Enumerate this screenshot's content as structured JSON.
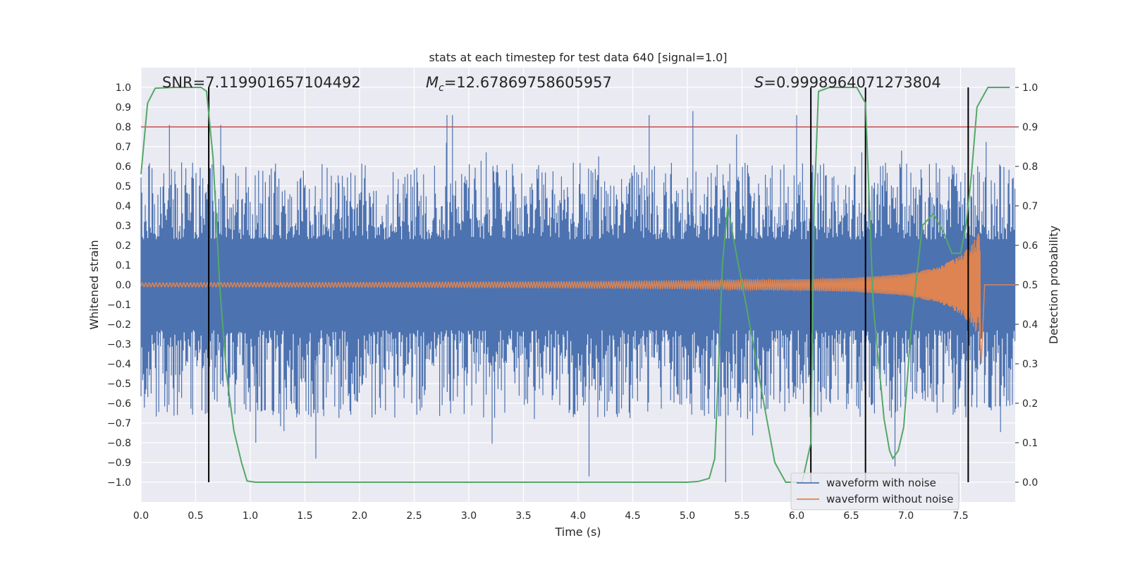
{
  "chart_data": {
    "type": "line",
    "title": "stats at each timestep for test data 640 [signal=1.0]",
    "xlabel": "Time (s)",
    "ylabel": "Whitened strain",
    "y2label": "Detection probability",
    "xlim": [
      0.0,
      8.0
    ],
    "ylim": [
      -1.1,
      1.1
    ],
    "y2lim": [
      -0.05,
      1.05
    ],
    "x_ticks": [
      0.0,
      0.5,
      1.0,
      1.5,
      2.0,
      2.5,
      3.0,
      3.5,
      4.0,
      4.5,
      5.0,
      5.5,
      6.0,
      6.5,
      7.0,
      7.5
    ],
    "x_tick_labels": [
      "0.0",
      "0.5",
      "1.0",
      "1.5",
      "2.0",
      "2.5",
      "3.0",
      "3.5",
      "4.0",
      "4.5",
      "5.0",
      "5.5",
      "6.0",
      "6.5",
      "7.0",
      "7.5"
    ],
    "y_ticks": [
      1.0,
      0.9,
      0.8,
      0.7,
      0.6,
      0.5,
      0.4,
      0.3,
      0.2,
      0.1,
      0.0,
      -0.1,
      -0.2,
      -0.3,
      -0.4,
      -0.5,
      -0.6,
      -0.7,
      -0.8,
      -0.9,
      -1.0
    ],
    "y_tick_labels": [
      "1.0",
      "0.9",
      "0.8",
      "0.7",
      "0.6",
      "0.5",
      "0.4",
      "0.3",
      "0.2",
      "0.1",
      "0.0",
      "−0.1",
      "−0.2",
      "−0.3",
      "−0.4",
      "−0.5",
      "−0.6",
      "−0.7",
      "−0.8",
      "−0.9",
      "−1.0"
    ],
    "y2_ticks": [
      1.0,
      0.9,
      0.8,
      0.7,
      0.6,
      0.5,
      0.4,
      0.3,
      0.2,
      0.1,
      0.0
    ],
    "y2_tick_labels": [
      "1.0",
      "0.9",
      "0.8",
      "0.7",
      "0.6",
      "0.5",
      "0.4",
      "0.3",
      "0.2",
      "0.1",
      "0.0"
    ],
    "grid": true,
    "annotations": {
      "snr": "SNR=7.119901657104492",
      "mc_symbol": "M",
      "mc_subscript": "c",
      "mc_value": "=12.67869758605957",
      "s_symbol": "S",
      "s_value": "=0.9998964071273804"
    },
    "threshold": {
      "y2": 0.9,
      "color": "#c44e52"
    },
    "vertical_markers": {
      "x": [
        0.62,
        6.13,
        6.63,
        7.57
      ],
      "y_range": [
        -1.0,
        1.0
      ],
      "color": "#000000"
    },
    "legend": {
      "placement": "lower-right",
      "entries": [
        {
          "label": "waveform with noise",
          "color": "#4c72b0"
        },
        {
          "label": "waveform without noise",
          "color": "#dd8452"
        }
      ]
    },
    "series": [
      {
        "name": "waveform with noise",
        "axis": "left",
        "color": "#4c72b0",
        "style": "dense noise band",
        "core_amplitude": 0.23,
        "typical_peak": [
          0.62,
          -0.68
        ],
        "max": 0.9,
        "min": -1.0,
        "notable_spikes": [
          [
            0.26,
            0.81
          ],
          [
            0.73,
            0.81
          ],
          [
            1.05,
            -0.8
          ],
          [
            1.6,
            -0.88
          ],
          [
            2.8,
            0.86
          ],
          [
            2.85,
            0.86
          ],
          [
            4.1,
            -0.97
          ],
          [
            4.65,
            0.86
          ],
          [
            5.05,
            0.88
          ],
          [
            5.35,
            -1.0
          ],
          [
            6.0,
            0.86
          ],
          [
            6.9,
            -0.92
          ]
        ]
      },
      {
        "name": "waveform without noise",
        "axis": "left",
        "color": "#dd8452",
        "style": "chirp",
        "points": [
          [
            0.0,
            0.01
          ],
          [
            2.0,
            0.012
          ],
          [
            4.0,
            0.016
          ],
          [
            5.0,
            0.02
          ],
          [
            6.0,
            0.028
          ],
          [
            6.5,
            0.035
          ],
          [
            7.0,
            0.055
          ],
          [
            7.3,
            0.09
          ],
          [
            7.5,
            0.15
          ],
          [
            7.6,
            0.2
          ],
          [
            7.68,
            0.28
          ],
          [
            7.69,
            -0.4
          ],
          [
            7.72,
            0.0
          ],
          [
            8.0,
            0.0
          ]
        ]
      },
      {
        "name": "detection probability",
        "axis": "right",
        "color": "#55a868",
        "points": [
          [
            0.0,
            0.78
          ],
          [
            0.06,
            0.96
          ],
          [
            0.13,
            0.998
          ],
          [
            0.3,
            1.0
          ],
          [
            0.55,
            1.0
          ],
          [
            0.6,
            0.99
          ],
          [
            0.66,
            0.82
          ],
          [
            0.72,
            0.5
          ],
          [
            0.78,
            0.28
          ],
          [
            0.85,
            0.13
          ],
          [
            0.92,
            0.05
          ],
          [
            0.97,
            0.003
          ],
          [
            1.05,
            0.0
          ],
          [
            2.0,
            0.0
          ],
          [
            3.0,
            0.0
          ],
          [
            4.0,
            0.0
          ],
          [
            5.0,
            0.0
          ],
          [
            5.1,
            0.002
          ],
          [
            5.2,
            0.01
          ],
          [
            5.25,
            0.06
          ],
          [
            5.28,
            0.25
          ],
          [
            5.32,
            0.55
          ],
          [
            5.37,
            0.7
          ],
          [
            5.42,
            0.62
          ],
          [
            5.55,
            0.43
          ],
          [
            5.7,
            0.2
          ],
          [
            5.8,
            0.05
          ],
          [
            5.9,
            0.0
          ],
          [
            6.05,
            0.0
          ],
          [
            6.13,
            0.1
          ],
          [
            6.16,
            0.7
          ],
          [
            6.2,
            0.99
          ],
          [
            6.3,
            1.0
          ],
          [
            6.55,
            1.0
          ],
          [
            6.63,
            0.96
          ],
          [
            6.7,
            0.45
          ],
          [
            6.8,
            0.16
          ],
          [
            6.85,
            0.08
          ],
          [
            6.88,
            0.06
          ],
          [
            6.93,
            0.08
          ],
          [
            6.98,
            0.14
          ],
          [
            7.05,
            0.4
          ],
          [
            7.15,
            0.65
          ],
          [
            7.25,
            0.68
          ],
          [
            7.35,
            0.63
          ],
          [
            7.42,
            0.58
          ],
          [
            7.5,
            0.58
          ],
          [
            7.55,
            0.65
          ],
          [
            7.6,
            0.78
          ],
          [
            7.65,
            0.95
          ],
          [
            7.75,
            1.0
          ],
          [
            7.95,
            1.0
          ]
        ]
      }
    ]
  }
}
